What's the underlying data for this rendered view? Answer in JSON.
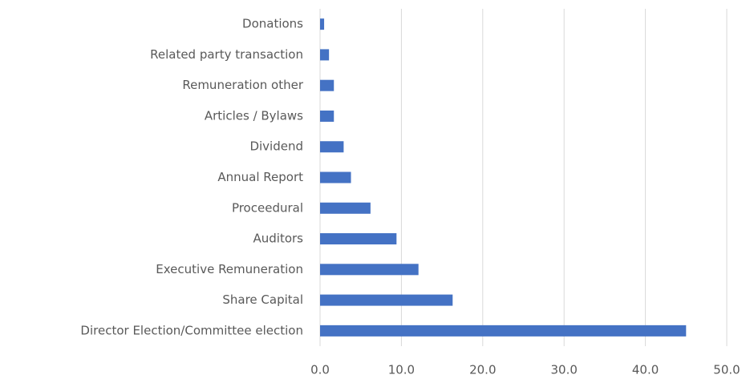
{
  "chart_data": {
    "type": "bar",
    "orientation": "horizontal",
    "categories": [
      "Donations",
      "Related party transaction",
      "Remuneration other",
      "Articles / Bylaws",
      "Dividend",
      "Annual Report",
      "Proceedural",
      "Auditors",
      "Executive Remuneration",
      "Share Capital",
      "Director Election/Committee election"
    ],
    "values": [
      0.5,
      1.1,
      1.7,
      1.7,
      2.9,
      3.8,
      6.2,
      9.4,
      12.1,
      16.3,
      45.0
    ],
    "color": "#4472c4",
    "xlim": [
      0,
      50
    ],
    "xticks": [
      {
        "value": 0,
        "label": "0.0"
      },
      {
        "value": 10,
        "label": "10.0"
      },
      {
        "value": 20,
        "label": "20.0"
      },
      {
        "value": 30,
        "label": "30.0"
      },
      {
        "value": 40,
        "label": "40.0"
      },
      {
        "value": 50,
        "label": "50.0"
      }
    ],
    "grid": true
  }
}
